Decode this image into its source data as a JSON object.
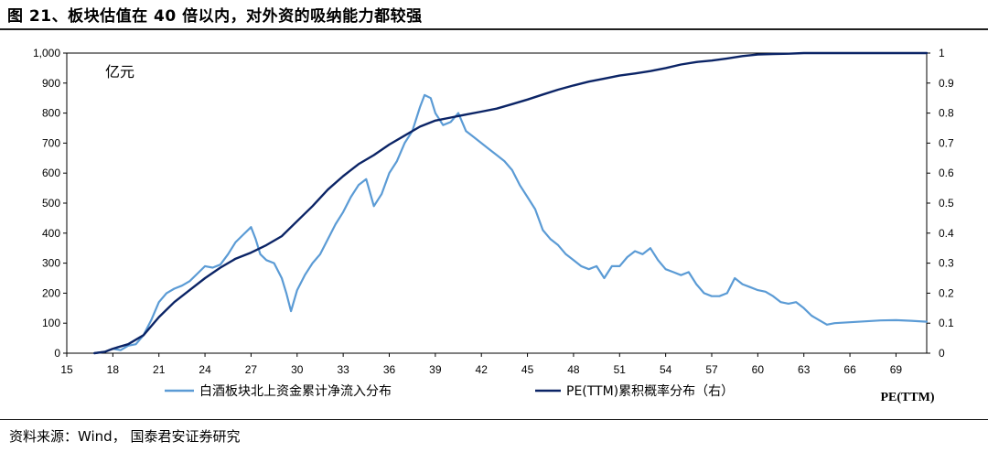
{
  "header": {
    "title": "图 21、板块估值在 40 倍以内，对外资的吸纳能力都较强"
  },
  "footer": {
    "source": "资料来源：Wind，  国泰君安证券研究"
  },
  "chart_data": {
    "type": "line",
    "unit_label": "亿元",
    "xlabel": "PE(TTM)",
    "xlim": [
      15,
      71
    ],
    "x_ticks": [
      15,
      18,
      21,
      24,
      27,
      30,
      33,
      36,
      39,
      42,
      45,
      48,
      51,
      54,
      57,
      60,
      63,
      66,
      69
    ],
    "y_left": {
      "lim": [
        0,
        1000
      ],
      "ticks": [
        "0",
        "100",
        "200",
        "300",
        "400",
        "500",
        "600",
        "700",
        "800",
        "900",
        "1,000"
      ]
    },
    "y_right": {
      "lim": [
        0,
        1
      ],
      "ticks": [
        "0",
        "0.1",
        "0.2",
        "0.3",
        "0.4",
        "0.5",
        "0.6",
        "0.7",
        "0.8",
        "0.9",
        "1"
      ]
    },
    "legend": {
      "placement": "bottom"
    },
    "series": [
      {
        "name": "白酒板块北上资金累计净流入分布",
        "axis": "left",
        "color": "#5b9bd5",
        "points": [
          [
            16.8,
            0
          ],
          [
            17.5,
            5
          ],
          [
            18.0,
            15
          ],
          [
            18.5,
            10
          ],
          [
            19.0,
            25
          ],
          [
            19.5,
            30
          ],
          [
            20.0,
            60
          ],
          [
            20.5,
            110
          ],
          [
            21.0,
            170
          ],
          [
            21.5,
            200
          ],
          [
            22.0,
            215
          ],
          [
            22.5,
            225
          ],
          [
            23.0,
            240
          ],
          [
            23.5,
            265
          ],
          [
            24.0,
            290
          ],
          [
            24.5,
            285
          ],
          [
            25.0,
            295
          ],
          [
            25.5,
            330
          ],
          [
            26.0,
            370
          ],
          [
            26.5,
            395
          ],
          [
            27.0,
            420
          ],
          [
            27.3,
            380
          ],
          [
            27.6,
            330
          ],
          [
            28.0,
            310
          ],
          [
            28.5,
            300
          ],
          [
            29.0,
            250
          ],
          [
            29.3,
            200
          ],
          [
            29.6,
            140
          ],
          [
            30.0,
            210
          ],
          [
            30.5,
            260
          ],
          [
            31.0,
            300
          ],
          [
            31.5,
            330
          ],
          [
            32.0,
            380
          ],
          [
            32.5,
            430
          ],
          [
            33.0,
            470
          ],
          [
            33.5,
            520
          ],
          [
            34.0,
            560
          ],
          [
            34.5,
            580
          ],
          [
            35.0,
            490
          ],
          [
            35.5,
            530
          ],
          [
            36.0,
            600
          ],
          [
            36.5,
            640
          ],
          [
            37.0,
            700
          ],
          [
            37.5,
            740
          ],
          [
            38.0,
            820
          ],
          [
            38.3,
            860
          ],
          [
            38.7,
            850
          ],
          [
            39.0,
            800
          ],
          [
            39.5,
            760
          ],
          [
            40.0,
            770
          ],
          [
            40.5,
            800
          ],
          [
            41.0,
            740
          ],
          [
            41.5,
            720
          ],
          [
            42.0,
            700
          ],
          [
            42.5,
            680
          ],
          [
            43.0,
            660
          ],
          [
            43.5,
            640
          ],
          [
            44.0,
            610
          ],
          [
            44.5,
            560
          ],
          [
            45.0,
            520
          ],
          [
            45.5,
            480
          ],
          [
            46.0,
            410
          ],
          [
            46.5,
            380
          ],
          [
            47.0,
            360
          ],
          [
            47.5,
            330
          ],
          [
            48.0,
            310
          ],
          [
            48.5,
            290
          ],
          [
            49.0,
            280
          ],
          [
            49.5,
            290
          ],
          [
            50.0,
            250
          ],
          [
            50.5,
            290
          ],
          [
            51.0,
            290
          ],
          [
            51.5,
            320
          ],
          [
            52.0,
            340
          ],
          [
            52.5,
            330
          ],
          [
            53.0,
            350
          ],
          [
            53.5,
            310
          ],
          [
            54.0,
            280
          ],
          [
            54.5,
            270
          ],
          [
            55.0,
            260
          ],
          [
            55.5,
            270
          ],
          [
            56.0,
            230
          ],
          [
            56.5,
            200
          ],
          [
            57.0,
            190
          ],
          [
            57.5,
            190
          ],
          [
            58.0,
            200
          ],
          [
            58.5,
            250
          ],
          [
            59.0,
            230
          ],
          [
            59.5,
            220
          ],
          [
            60.0,
            210
          ],
          [
            60.5,
            205
          ],
          [
            61.0,
            190
          ],
          [
            61.5,
            170
          ],
          [
            62.0,
            165
          ],
          [
            62.5,
            170
          ],
          [
            63.0,
            150
          ],
          [
            63.5,
            125
          ],
          [
            64.0,
            110
          ],
          [
            64.5,
            95
          ],
          [
            65.0,
            100
          ],
          [
            66.0,
            103
          ],
          [
            67.0,
            106
          ],
          [
            68.0,
            109
          ],
          [
            69.0,
            110
          ],
          [
            70.0,
            108
          ],
          [
            71.0,
            105
          ]
        ]
      },
      {
        "name": "PE(TTM)累积概率分布（右）",
        "axis": "right",
        "color": "#0b2466",
        "points": [
          [
            16.8,
            0
          ],
          [
            17.5,
            0.005
          ],
          [
            18.0,
            0.015
          ],
          [
            19.0,
            0.03
          ],
          [
            20.0,
            0.06
          ],
          [
            21.0,
            0.12
          ],
          [
            22.0,
            0.17
          ],
          [
            23.0,
            0.21
          ],
          [
            24.0,
            0.25
          ],
          [
            25.0,
            0.285
          ],
          [
            26.0,
            0.315
          ],
          [
            27.0,
            0.335
          ],
          [
            28.0,
            0.36
          ],
          [
            29.0,
            0.39
          ],
          [
            30.0,
            0.44
          ],
          [
            31.0,
            0.49
          ],
          [
            32.0,
            0.545
          ],
          [
            33.0,
            0.59
          ],
          [
            34.0,
            0.63
          ],
          [
            35.0,
            0.66
          ],
          [
            36.0,
            0.695
          ],
          [
            37.0,
            0.725
          ],
          [
            38.0,
            0.755
          ],
          [
            39.0,
            0.775
          ],
          [
            40.0,
            0.785
          ],
          [
            41.0,
            0.795
          ],
          [
            42.0,
            0.805
          ],
          [
            43.0,
            0.815
          ],
          [
            44.0,
            0.83
          ],
          [
            45.0,
            0.845
          ],
          [
            46.0,
            0.862
          ],
          [
            47.0,
            0.878
          ],
          [
            48.0,
            0.892
          ],
          [
            49.0,
            0.905
          ],
          [
            50.0,
            0.915
          ],
          [
            51.0,
            0.925
          ],
          [
            52.0,
            0.932
          ],
          [
            53.0,
            0.94
          ],
          [
            54.0,
            0.95
          ],
          [
            55.0,
            0.962
          ],
          [
            56.0,
            0.97
          ],
          [
            57.0,
            0.975
          ],
          [
            58.0,
            0.982
          ],
          [
            59.0,
            0.99
          ],
          [
            60.0,
            0.995
          ],
          [
            61.0,
            0.997
          ],
          [
            62.0,
            0.998
          ],
          [
            63.0,
            1.0
          ],
          [
            66.0,
            1.0
          ],
          [
            69.0,
            1.0
          ],
          [
            71.0,
            1.0
          ]
        ]
      }
    ]
  }
}
